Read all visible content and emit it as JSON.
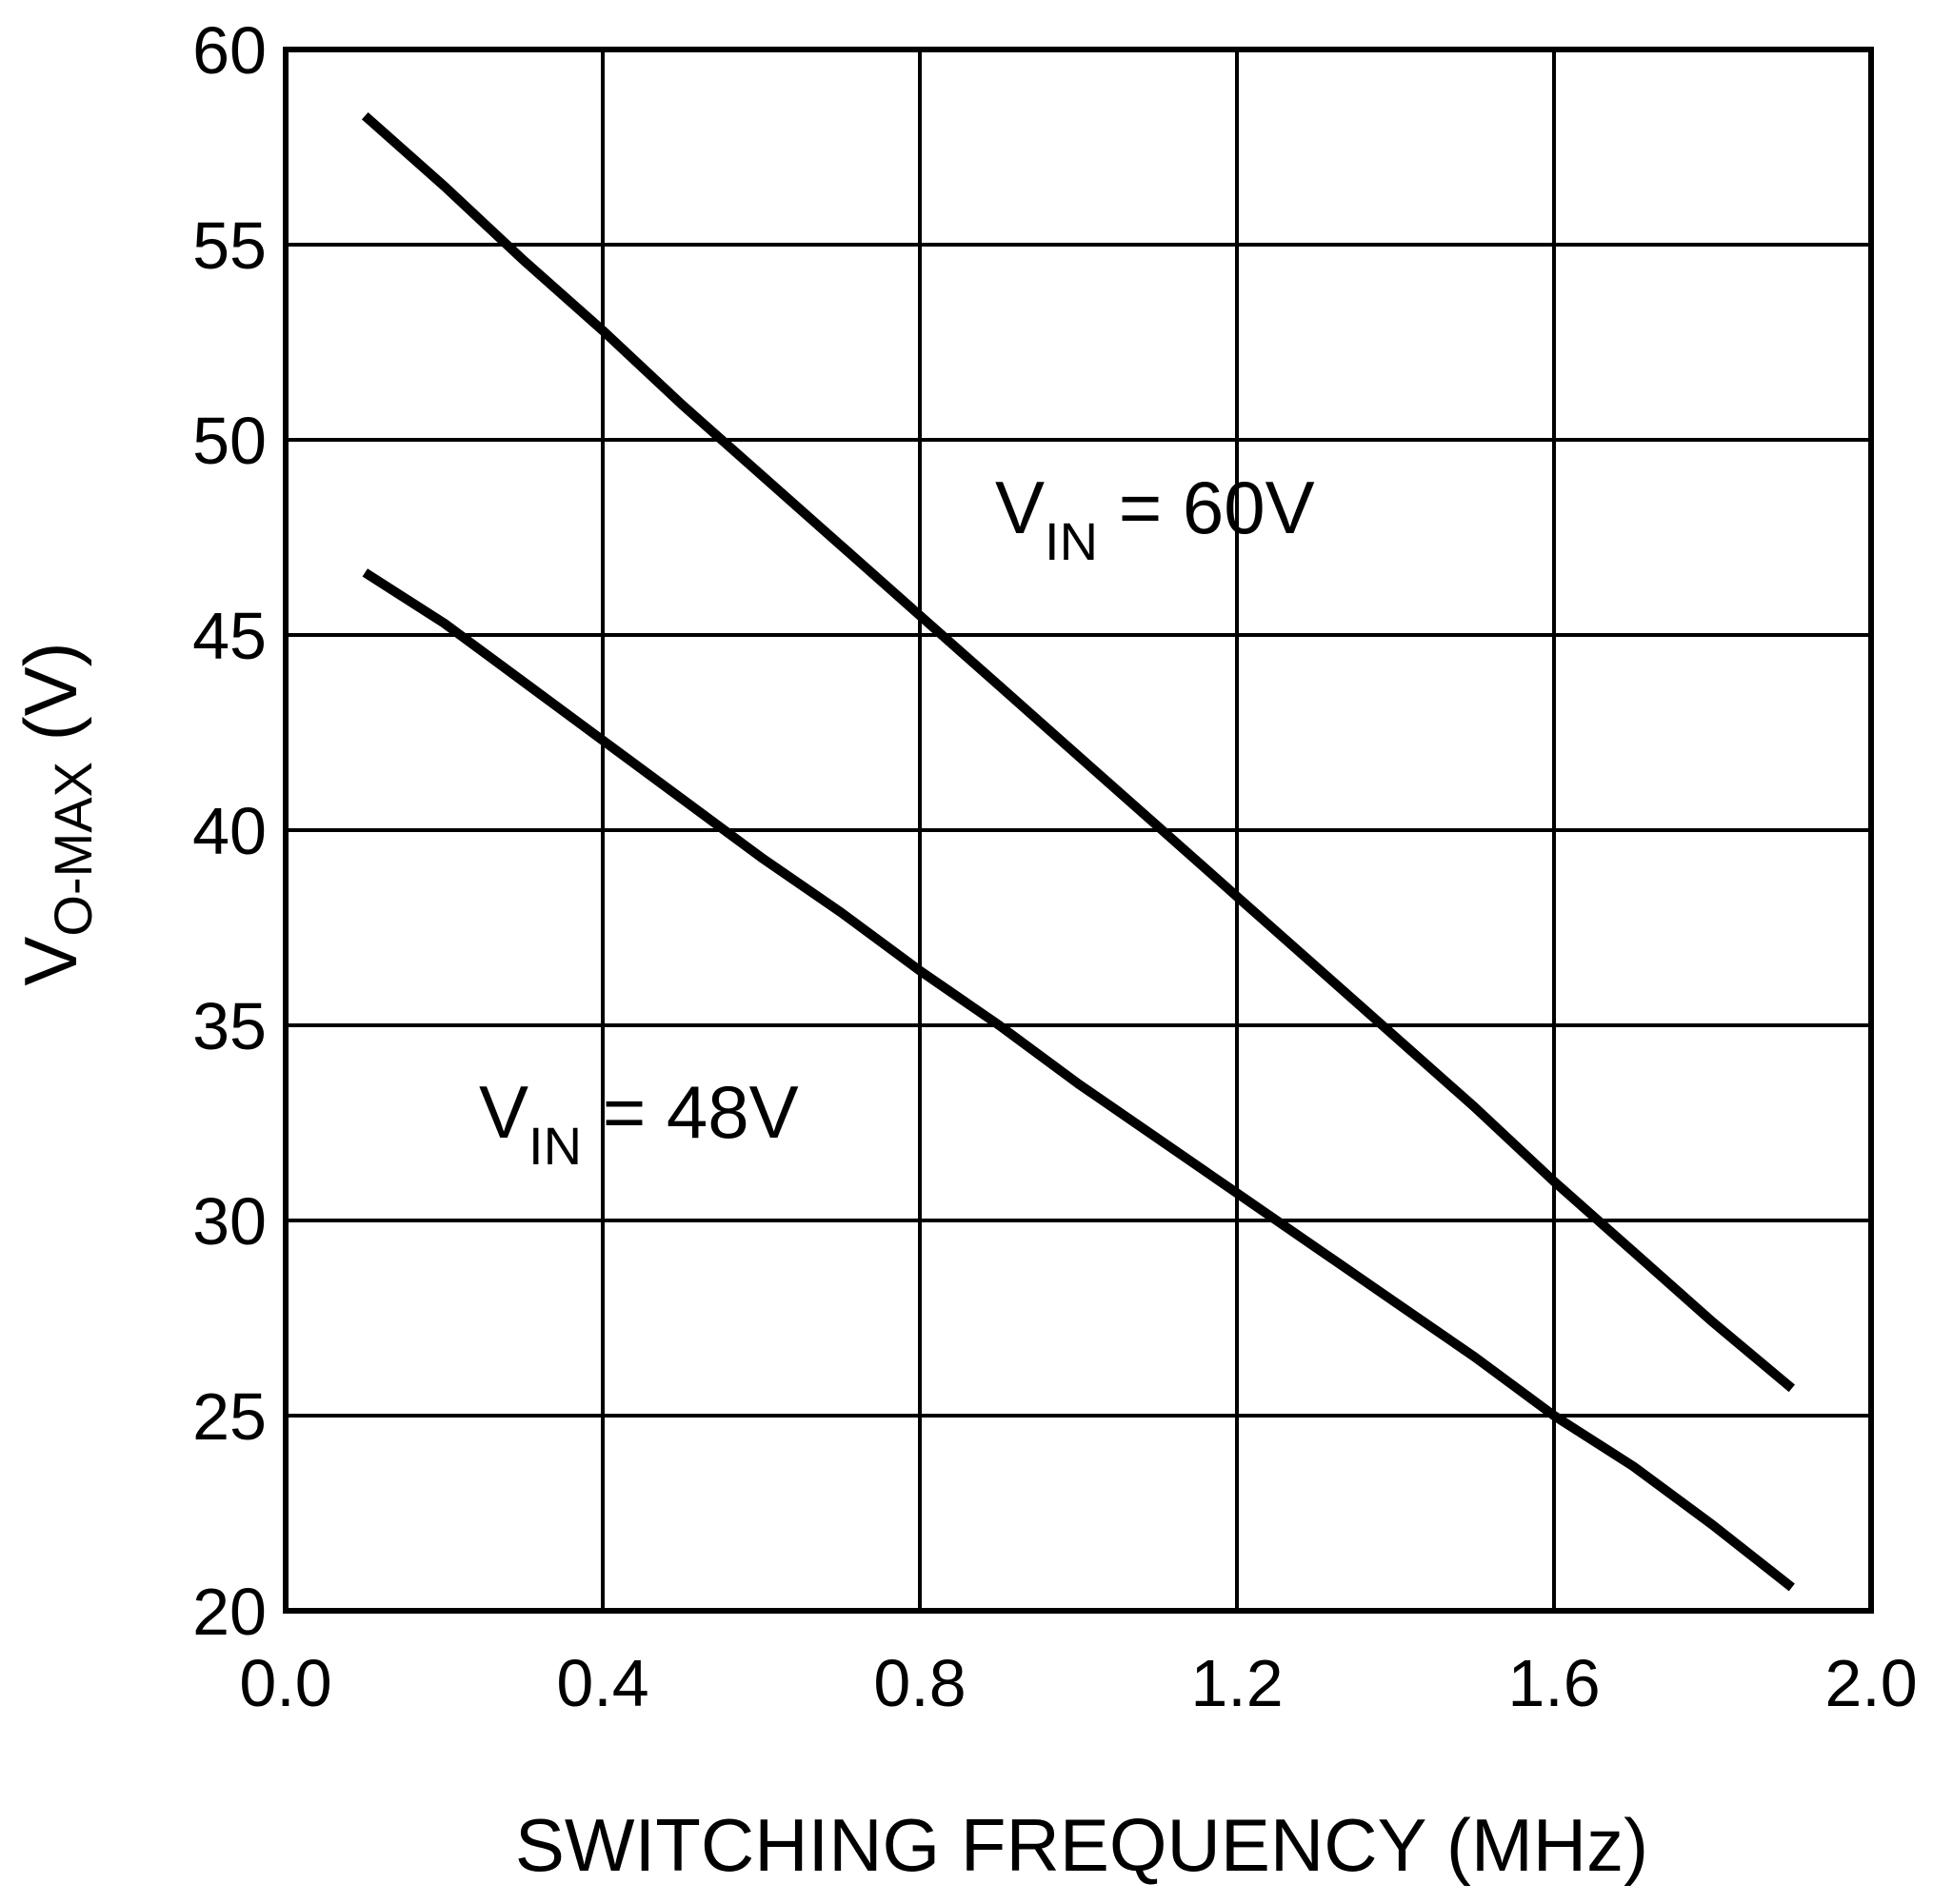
{
  "chart_data": {
    "type": "line",
    "title": "",
    "xlabel": "SWITCHING FREQUENCY  (MHz)",
    "ylabel": {
      "main": "V",
      "subscript": "O-MAX",
      "unit": " (V)"
    },
    "xlim": [
      0.0,
      2.0
    ],
    "ylim": [
      20,
      60
    ],
    "xticks": [
      0.0,
      0.4,
      0.8,
      1.2,
      1.6,
      2.0
    ],
    "xtick_labels": [
      "0.0",
      "0.4",
      "0.8",
      "1.2",
      "1.6",
      "2.0"
    ],
    "yticks": [
      20,
      25,
      30,
      35,
      40,
      45,
      50,
      55,
      60
    ],
    "ytick_labels": [
      "20",
      "25",
      "30",
      "35",
      "40",
      "45",
      "50",
      "55",
      "60"
    ],
    "grid": true,
    "series": [
      {
        "name": "VIN = 60V",
        "label_main": "V",
        "label_sub": "IN",
        "label_rest": " = 60V",
        "x": [
          0.1,
          0.2,
          0.3,
          0.4,
          0.5,
          0.6,
          0.7,
          0.8,
          0.9,
          1.0,
          1.1,
          1.2,
          1.3,
          1.4,
          1.5,
          1.6,
          1.7,
          1.8,
          1.9
        ],
        "values": [
          58.3,
          56.5,
          54.6,
          52.8,
          50.9,
          49.1,
          47.3,
          45.5,
          43.7,
          41.9,
          40.1,
          38.3,
          36.5,
          34.7,
          32.9,
          31.0,
          29.2,
          27.4,
          25.7
        ]
      },
      {
        "name": "VIN = 48V",
        "label_main": "V",
        "label_sub": "IN",
        "label_rest": " = 48V",
        "x": [
          0.1,
          0.2,
          0.3,
          0.4,
          0.5,
          0.6,
          0.7,
          0.8,
          0.9,
          1.0,
          1.1,
          1.2,
          1.3,
          1.4,
          1.5,
          1.6,
          1.7,
          1.8,
          1.9
        ],
        "values": [
          46.6,
          45.3,
          43.8,
          42.3,
          40.8,
          39.3,
          37.9,
          36.4,
          35.0,
          33.5,
          32.1,
          30.7,
          29.3,
          27.9,
          26.5,
          25.0,
          23.7,
          22.2,
          20.6
        ]
      }
    ]
  }
}
